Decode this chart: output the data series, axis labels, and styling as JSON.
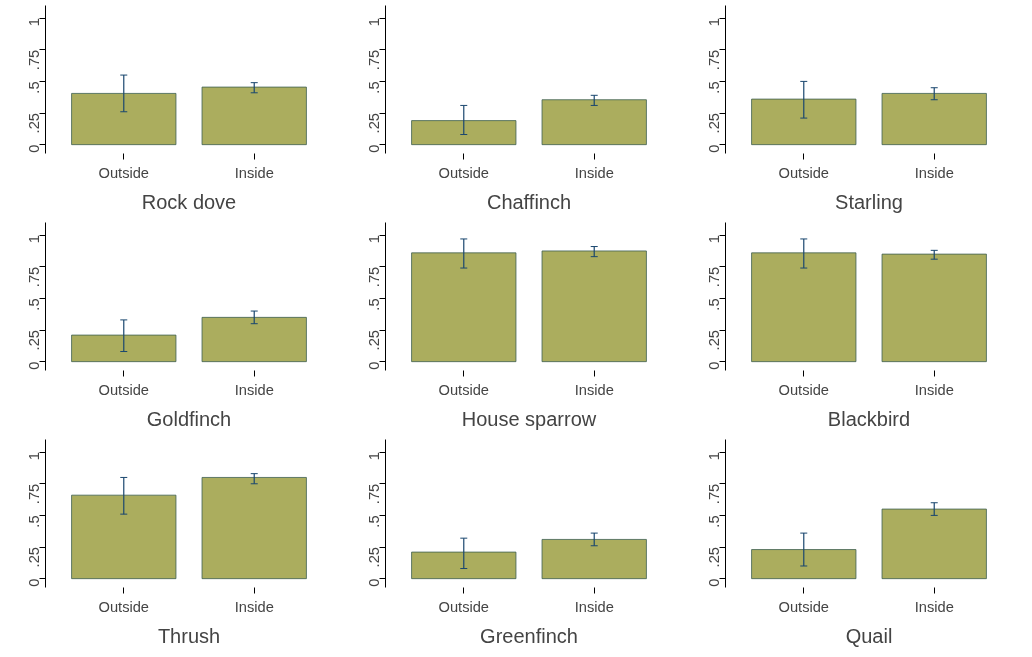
{
  "chart_data": [
    {
      "type": "bar",
      "title": "Rock dove",
      "categories": [
        "Outside",
        "Inside"
      ],
      "values": [
        0.405,
        0.455
      ],
      "errors": [
        [
          0.26,
          0.55
        ],
        [
          0.41,
          0.49
        ]
      ],
      "color": "#abad5e",
      "ylim": [
        -0.07,
        1.1
      ],
      "yticks": [
        0,
        {
          "value": 0.25,
          "label": ".25"
        },
        {
          "value": 0.5,
          "label": ".5"
        },
        {
          "value": 0.75,
          "label": ".75"
        },
        1
      ],
      "grid": false
    },
    {
      "type": "bar",
      "title": "Chaffinch",
      "categories": [
        "Outside",
        "Inside"
      ],
      "values": [
        0.19,
        0.355
      ],
      "errors": [
        [
          0.08,
          0.31
        ],
        [
          0.31,
          0.39
        ]
      ],
      "color": "#abad5e",
      "ylim": [
        -0.07,
        1.1
      ],
      "yticks": [
        0,
        {
          "value": 0.25,
          "label": ".25"
        },
        {
          "value": 0.5,
          "label": ".5"
        },
        {
          "value": 0.75,
          "label": ".75"
        },
        1
      ],
      "grid": false
    },
    {
      "type": "bar",
      "title": "Starling",
      "categories": [
        "Outside",
        "Inside"
      ],
      "values": [
        0.36,
        0.405
      ],
      "errors": [
        [
          0.21,
          0.5
        ],
        [
          0.355,
          0.45
        ]
      ],
      "color": "#abad5e",
      "ylim": [
        -0.07,
        1.1
      ],
      "yticks": [
        0,
        {
          "value": 0.25,
          "label": ".25"
        },
        {
          "value": 0.5,
          "label": ".5"
        },
        {
          "value": 0.75,
          "label": ".75"
        },
        1
      ],
      "grid": false
    },
    {
      "type": "bar",
      "title": "Goldfinch",
      "categories": [
        "Outside",
        "Inside"
      ],
      "values": [
        0.21,
        0.35
      ],
      "errors": [
        [
          0.08,
          0.33
        ],
        [
          0.3,
          0.4
        ]
      ],
      "color": "#abad5e",
      "ylim": [
        -0.07,
        1.1
      ],
      "yticks": [
        0,
        {
          "value": 0.25,
          "label": ".25"
        },
        {
          "value": 0.5,
          "label": ".5"
        },
        {
          "value": 0.75,
          "label": ".75"
        },
        1
      ],
      "grid": false
    },
    {
      "type": "bar",
      "title": "House sparrow",
      "categories": [
        "Outside",
        "Inside"
      ],
      "values": [
        0.86,
        0.875
      ],
      "errors": [
        [
          0.74,
          0.97
        ],
        [
          0.83,
          0.91
        ]
      ],
      "color": "#abad5e",
      "ylim": [
        -0.07,
        1.1
      ],
      "yticks": [
        0,
        {
          "value": 0.25,
          "label": ".25"
        },
        {
          "value": 0.5,
          "label": ".5"
        },
        {
          "value": 0.75,
          "label": ".75"
        },
        1
      ],
      "grid": false
    },
    {
      "type": "bar",
      "title": "Blackbird",
      "categories": [
        "Outside",
        "Inside"
      ],
      "values": [
        0.86,
        0.85
      ],
      "errors": [
        [
          0.74,
          0.97
        ],
        [
          0.81,
          0.88
        ]
      ],
      "color": "#abad5e",
      "ylim": [
        -0.07,
        1.1
      ],
      "yticks": [
        0,
        {
          "value": 0.25,
          "label": ".25"
        },
        {
          "value": 0.5,
          "label": ".5"
        },
        {
          "value": 0.75,
          "label": ".75"
        },
        1
      ],
      "grid": false
    },
    {
      "type": "bar",
      "title": "Thrush",
      "categories": [
        "Outside",
        "Inside"
      ],
      "values": [
        0.66,
        0.8
      ],
      "errors": [
        [
          0.51,
          0.8
        ],
        [
          0.75,
          0.83
        ]
      ],
      "color": "#abad5e",
      "ylim": [
        -0.07,
        1.1
      ],
      "yticks": [
        0,
        {
          "value": 0.25,
          "label": ".25"
        },
        {
          "value": 0.5,
          "label": ".5"
        },
        {
          "value": 0.75,
          "label": ".75"
        },
        1
      ],
      "grid": false
    },
    {
      "type": "bar",
      "title": "Greenfinch",
      "categories": [
        "Outside",
        "Inside"
      ],
      "values": [
        0.21,
        0.31
      ],
      "errors": [
        [
          0.08,
          0.32
        ],
        [
          0.26,
          0.36
        ]
      ],
      "color": "#abad5e",
      "ylim": [
        -0.07,
        1.1
      ],
      "yticks": [
        0,
        {
          "value": 0.25,
          "label": ".25"
        },
        {
          "value": 0.5,
          "label": ".5"
        },
        {
          "value": 0.75,
          "label": ".75"
        },
        1
      ],
      "grid": false
    },
    {
      "type": "bar",
      "title": "Quail",
      "categories": [
        "Outside",
        "Inside"
      ],
      "values": [
        0.23,
        0.55
      ],
      "errors": [
        [
          0.1,
          0.36
        ],
        [
          0.5,
          0.6
        ]
      ],
      "color": "#abad5e",
      "ylim": [
        -0.07,
        1.1
      ],
      "yticks": [
        0,
        {
          "value": 0.25,
          "label": ".25"
        },
        {
          "value": 0.5,
          "label": ".5"
        },
        {
          "value": 0.75,
          "label": ".75"
        },
        1
      ],
      "grid": false
    }
  ]
}
